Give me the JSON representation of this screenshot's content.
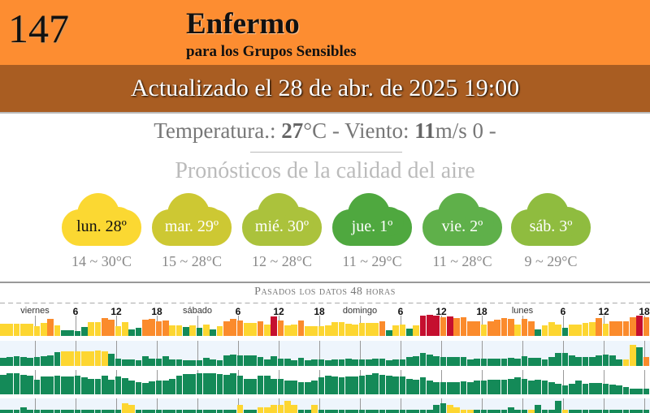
{
  "aqi": {
    "value": "147",
    "level": "Enfermo",
    "sublevel": "para los Grupos Sensibles"
  },
  "updated": "Actualizado el 28 de abr. de 2025 19:00",
  "weather": {
    "temp_label": "Temperatura.:",
    "temp": "27",
    "temp_unit": "°C - Viento:",
    "wind": "11",
    "wind_unit": "m/s 0 -"
  },
  "forecast_title": "Pronósticos de la calidad del aire",
  "forecast": [
    {
      "day": "lun. 28º",
      "range": "14 ~ 30°C",
      "color": "#fbd832",
      "text_color": "#111"
    },
    {
      "day": "mar. 29º",
      "range": "15 ~ 28°C",
      "color": "#cdc833",
      "text_color": "#fff"
    },
    {
      "day": "mié. 30º",
      "range": "12 ~ 28°C",
      "color": "#abc23c",
      "text_color": "#fff"
    },
    {
      "day": "jue. 1º",
      "range": "11 ~ 29°C",
      "color": "#4fa83f",
      "text_color": "#fff"
    },
    {
      "day": "vie. 2º",
      "range": "11 ~ 28°C",
      "color": "#5fb04a",
      "text_color": "#fff"
    },
    {
      "day": "sáb. 3º",
      "range": "9 ~ 29°C",
      "color": "#8fbc3f",
      "text_color": "#fff"
    }
  ],
  "history": {
    "title": "Pasados los datos 48 horas",
    "labels": [
      "viernes",
      "6",
      "12",
      "18",
      "sábado",
      "6",
      "12",
      "18",
      "domingo",
      "6",
      "12",
      "18",
      "lunes",
      "6",
      "12",
      "18"
    ],
    "colors": {
      "g": "#148a58",
      "y": "#fdd631",
      "o": "#fb8b2c",
      "r": "#c50f2f"
    },
    "chart_data": [
      {
        "type": "bar",
        "name": "aqi",
        "colors": "yyyyyyyoyggggyyooyyggooooyygygygyoooyyoyroyyoyyyyyyyyyyyogyygyrrrorooooyooooyoogyyygyyyyoyoooorο",
        "values": [
          45,
          45,
          45,
          45,
          45,
          35,
          47,
          63,
          40,
          22,
          22,
          17,
          33,
          50,
          50,
          65,
          60,
          35,
          50,
          23,
          30,
          60,
          63,
          55,
          57,
          40,
          38,
          33,
          40,
          30,
          42,
          25,
          35,
          55,
          62,
          58,
          47,
          47,
          53,
          42,
          72,
          58,
          38,
          43,
          58,
          35,
          35,
          35,
          38,
          50,
          50,
          45,
          43,
          47,
          47,
          47,
          53,
          22,
          40,
          43,
          27,
          40,
          75,
          77,
          75,
          70,
          73,
          67,
          68,
          53,
          55,
          43,
          53,
          60,
          65,
          63,
          43,
          63,
          55,
          25,
          40,
          50,
          43,
          30,
          43,
          43,
          48,
          50,
          67,
          45,
          55,
          53,
          53,
          70,
          75,
          70
        ]
      },
      {
        "type": "bar",
        "name": "pollutant-2",
        "colors": "gggggggggyyyyyyyggggggggggggggggggggggggggggggggggggggggggggggggggggggggggggggggggggggggggggyyg",
        "values": [
          30,
          32,
          35,
          32,
          30,
          33,
          37,
          38,
          50,
          55,
          55,
          55,
          55,
          55,
          57,
          53,
          45,
          28,
          25,
          25,
          20,
          37,
          28,
          28,
          35,
          25,
          25,
          22,
          22,
          22,
          30,
          25,
          20,
          38,
          42,
          40,
          38,
          38,
          33,
          25,
          35,
          28,
          28,
          20,
          30,
          20,
          25,
          25,
          20,
          25,
          25,
          28,
          25,
          25,
          25,
          27,
          27,
          20,
          23,
          25,
          33,
          35,
          47,
          43,
          37,
          33,
          32,
          32,
          32,
          25,
          28,
          28,
          28,
          28,
          28,
          30,
          27,
          37,
          30,
          30,
          25,
          32,
          48,
          48,
          38,
          32,
          32,
          32,
          38,
          42,
          38,
          25,
          25,
          78,
          70,
          32
        ]
      },
      {
        "type": "bar",
        "name": "pollutant-3",
        "colors": "gggggggggggggggggggggggggggggggggggggggggggggggggggggggggggggggggggggggggggggggggggggggggggggggg",
        "values": [
          71,
          78,
          78,
          73,
          68,
          53,
          66,
          66,
          68,
          65,
          66,
          68,
          63,
          58,
          58,
          68,
          53,
          65,
          61,
          50,
          46,
          43,
          48,
          50,
          50,
          58,
          70,
          76,
          76,
          78,
          78,
          78,
          75,
          73,
          78,
          70,
          58,
          58,
          68,
          68,
          58,
          58,
          50,
          50,
          46,
          46,
          50,
          63,
          68,
          66,
          63,
          66,
          66,
          70,
          73,
          78,
          73,
          68,
          65,
          66,
          58,
          53,
          63,
          50,
          46,
          46,
          46,
          46,
          48,
          46,
          50,
          50,
          55,
          55,
          53,
          58,
          63,
          56,
          50,
          53,
          50,
          46,
          38,
          33,
          40,
          50,
          40,
          43,
          43,
          40,
          35,
          33,
          26,
          20,
          20,
          20
        ]
      },
      {
        "type": "bar",
        "name": "pollutant-4",
        "colors": "ggggggggggggggggggyygggggggggggggggyggyyyyyyggygggggggggggggggggggyyyyggggggggyggggyggggggggggggg",
        "values": [
          6,
          6,
          6,
          7,
          6,
          6,
          6,
          6,
          6,
          6,
          6,
          6,
          6,
          6,
          6,
          6,
          6,
          6,
          9,
          8,
          6,
          6,
          6,
          6,
          6,
          6,
          6,
          6,
          6,
          6,
          6,
          6,
          6,
          6,
          6,
          8,
          6,
          6,
          7,
          7,
          8,
          8,
          10,
          8,
          6,
          6,
          8,
          6,
          6,
          6,
          6,
          6,
          6,
          6,
          6,
          6,
          6,
          6,
          6,
          6,
          6,
          6,
          6,
          6,
          8,
          9,
          8,
          7,
          6,
          6,
          6,
          6,
          6,
          6,
          6,
          7,
          6,
          6,
          6,
          8,
          6,
          6,
          10,
          6,
          6,
          6,
          6,
          6,
          6,
          6,
          6,
          6,
          6,
          6,
          6,
          6
        ]
      }
    ]
  }
}
